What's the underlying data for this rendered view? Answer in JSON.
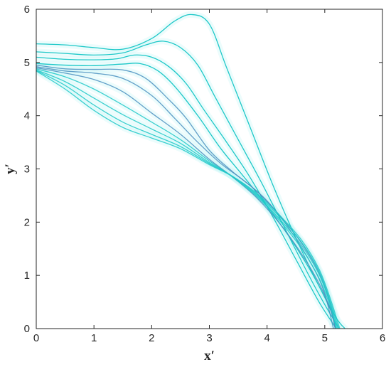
{
  "chart_data": {
    "type": "line",
    "title": "",
    "xlabel": "x′",
    "ylabel": "y′",
    "xlim": [
      0,
      6
    ],
    "ylim": [
      0,
      6
    ],
    "xticks": [
      "0",
      "1",
      "2",
      "3",
      "4",
      "5",
      "6"
    ],
    "yticks": [
      "0",
      "1",
      "2",
      "3",
      "4",
      "5",
      "6"
    ],
    "grid": false,
    "colors": {
      "line": "#1ec8c8",
      "overlap": "#4a8fc0",
      "glow": "#c8f5f5"
    },
    "series": [
      {
        "x": [
          0,
          0.5,
          1.0,
          1.5,
          2.0,
          2.4,
          2.7,
          3.0,
          3.3,
          3.7,
          4.1,
          4.5,
          4.9,
          5.2,
          5.35
        ],
        "y": [
          5.35,
          5.33,
          5.28,
          5.25,
          5.45,
          5.78,
          5.9,
          5.72,
          4.9,
          3.8,
          2.7,
          1.7,
          0.8,
          0.2,
          0.0
        ]
      },
      {
        "x": [
          0,
          0.5,
          1.0,
          1.5,
          1.9,
          2.2,
          2.5,
          2.8,
          3.1,
          3.5,
          3.9,
          4.3,
          4.7,
          5.0,
          5.25
        ],
        "y": [
          5.2,
          5.17,
          5.14,
          5.18,
          5.33,
          5.4,
          5.28,
          4.95,
          4.35,
          3.55,
          2.75,
          1.9,
          1.05,
          0.45,
          0.0
        ]
      },
      {
        "x": [
          0,
          0.5,
          1.0,
          1.4,
          1.7,
          2.0,
          2.3,
          2.6,
          2.9,
          3.3,
          3.7,
          4.1,
          4.5,
          4.9,
          5.2
        ],
        "y": [
          5.1,
          5.06,
          5.05,
          5.07,
          5.14,
          5.1,
          4.92,
          4.6,
          4.12,
          3.5,
          2.85,
          2.1,
          1.3,
          0.5,
          0.0
        ]
      },
      {
        "x": [
          0,
          0.5,
          1.0,
          1.5,
          1.8,
          2.1,
          2.4,
          2.8,
          3.2,
          3.6,
          4.0,
          4.4,
          4.8,
          5.1,
          5.2
        ],
        "y": [
          4.98,
          4.95,
          4.94,
          4.97,
          4.98,
          4.85,
          4.55,
          4.0,
          3.38,
          2.85,
          2.3,
          1.7,
          1.0,
          0.35,
          0.0
        ]
      },
      {
        "x": [
          0,
          0.5,
          1.0,
          1.5,
          1.9,
          2.3,
          2.6,
          3.0,
          3.4,
          3.8,
          4.2,
          4.6,
          4.9,
          5.1,
          5.18
        ],
        "y": [
          4.95,
          4.88,
          4.87,
          4.86,
          4.7,
          4.3,
          3.95,
          3.35,
          2.95,
          2.6,
          2.15,
          1.6,
          1.05,
          0.45,
          0.0
        ]
      },
      {
        "x": [
          0,
          0.5,
          1.0,
          1.5,
          2.0,
          2.4,
          2.8,
          3.2,
          3.6,
          4.0,
          4.4,
          4.8,
          5.0,
          5.15
        ],
        "y": [
          4.92,
          4.84,
          4.8,
          4.7,
          4.38,
          3.95,
          3.5,
          3.1,
          2.78,
          2.4,
          1.85,
          1.15,
          0.65,
          0.0
        ]
      },
      {
        "x": [
          0,
          0.5,
          1.0,
          1.5,
          2.0,
          2.5,
          3.0,
          3.4,
          3.8,
          4.2,
          4.6,
          4.9,
          5.1,
          5.18
        ],
        "y": [
          4.9,
          4.8,
          4.68,
          4.45,
          4.05,
          3.65,
          3.18,
          2.85,
          2.48,
          2.0,
          1.4,
          0.85,
          0.35,
          0.0
        ]
      },
      {
        "x": [
          0,
          0.5,
          1.0,
          1.5,
          2.0,
          2.5,
          3.0,
          3.4,
          3.8,
          4.2,
          4.6,
          4.9,
          5.1,
          5.2
        ],
        "y": [
          4.88,
          4.73,
          4.5,
          4.2,
          3.88,
          3.55,
          3.15,
          2.85,
          2.5,
          2.05,
          1.5,
          0.95,
          0.4,
          0.0
        ]
      },
      {
        "x": [
          0,
          0.5,
          1.0,
          1.5,
          2.0,
          2.5,
          3.0,
          3.4,
          3.8,
          4.2,
          4.6,
          4.9,
          5.1,
          5.22
        ],
        "y": [
          4.86,
          4.64,
          4.33,
          4.02,
          3.75,
          3.48,
          3.12,
          2.86,
          2.52,
          2.08,
          1.56,
          1.02,
          0.45,
          0.0
        ]
      },
      {
        "x": [
          0,
          0.5,
          1.0,
          1.5,
          2.0,
          2.5,
          3.0,
          3.4,
          3.8,
          4.2,
          4.6,
          4.9,
          5.1,
          5.24
        ],
        "y": [
          4.85,
          4.57,
          4.2,
          3.88,
          3.65,
          3.42,
          3.1,
          2.86,
          2.54,
          2.12,
          1.62,
          1.08,
          0.5,
          0.0
        ]
      },
      {
        "x": [
          0,
          0.5,
          1.0,
          1.5,
          2.0,
          2.5,
          3.0,
          3.4,
          3.8,
          4.2,
          4.6,
          4.9,
          5.1,
          5.26
        ],
        "y": [
          4.84,
          4.5,
          4.1,
          3.78,
          3.58,
          3.38,
          3.08,
          2.86,
          2.56,
          2.15,
          1.66,
          1.12,
          0.55,
          0.0
        ]
      }
    ]
  }
}
